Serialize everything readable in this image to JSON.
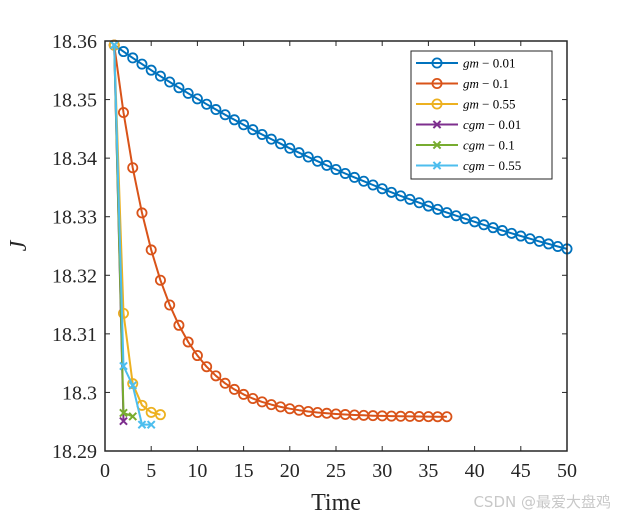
{
  "chart_data": {
    "type": "line",
    "xlabel": "Time",
    "ylabel": "J",
    "xlim": [
      0,
      50
    ],
    "ylim": [
      18.29,
      18.36
    ],
    "xticks": [
      0,
      5,
      10,
      15,
      20,
      25,
      30,
      35,
      40,
      45,
      50
    ],
    "yticks": [
      18.29,
      18.3,
      18.31,
      18.32,
      18.33,
      18.34,
      18.35,
      18.36
    ],
    "ytick_labels": [
      "18.29",
      "18.3",
      "18.31",
      "18.32",
      "18.33",
      "18.34",
      "18.35",
      "18.36"
    ],
    "grid": false,
    "legend_position": "top-right",
    "series": [
      {
        "name": "gm − 0.01",
        "label": "gm",
        "suffix": " − 0.01",
        "color": "#0072BD",
        "marker": "circle",
        "x0": 1,
        "count": 50,
        "y_start": 18.3593,
        "y_end": 18.3245,
        "decay": 0.02
      },
      {
        "name": "gm − 0.1",
        "label": "gm",
        "suffix": " − 0.1",
        "color": "#D95319",
        "marker": "circle",
        "x0": 1,
        "count": 37,
        "y_start": 18.3593,
        "y_end": 18.2962,
        "y_inf": 18.2958,
        "decay": 0.2
      },
      {
        "name": "gm − 0.55",
        "label": "gm",
        "suffix": " − 0.55",
        "color": "#EDB120",
        "marker": "circle",
        "x": [
          1,
          2,
          3,
          4,
          5,
          6
        ],
        "y": [
          18.3593,
          18.3135,
          18.3015,
          18.2978,
          18.2966,
          18.2962
        ]
      },
      {
        "name": "cgm − 0.01",
        "label": "cgm",
        "suffix": " − 0.01",
        "color": "#7E2F8E",
        "marker": "x",
        "x": [
          1,
          2
        ],
        "y": [
          18.3593,
          18.2951
        ]
      },
      {
        "name": "cgm − 0.1",
        "label": "cgm",
        "suffix": " − 0.1",
        "color": "#77AC30",
        "marker": "x",
        "x": [
          1,
          2,
          3
        ],
        "y": [
          18.3593,
          18.2965,
          18.2959
        ]
      },
      {
        "name": "cgm − 0.55",
        "label": "cgm",
        "suffix": " − 0.55",
        "color": "#4DBEEE",
        "marker": "x",
        "x": [
          1,
          2,
          3,
          4,
          5
        ],
        "y": [
          18.3593,
          18.3045,
          18.3012,
          18.2945,
          18.2945
        ]
      }
    ]
  },
  "watermark": "CSDN @最爱大盘鸡"
}
